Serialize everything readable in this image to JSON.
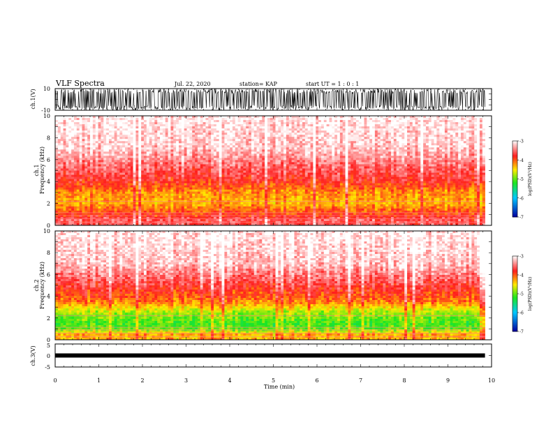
{
  "header": {
    "title": "VLF Spectra",
    "date": "Jul. 22, 2020",
    "station": "station= KAP",
    "start_ut": "start UT =  1 : 0 : 1"
  },
  "colors": {
    "low": "#0000c0",
    "mid_low": "#00e0ff",
    "mid": "#20e020",
    "mid_high": "#ffee00",
    "high": "#ff2020",
    "top": "#ffffff"
  },
  "chart_data": [
    {
      "type": "line",
      "name": "ch1-waveform",
      "ylabel": "ch.1(V)",
      "ylim": [
        -10,
        10
      ],
      "yticks": [
        "10",
        "-10"
      ],
      "xlim": [
        0,
        10
      ],
      "note_data_extent_min": 9.85,
      "description_style": "dense noisy waveform near full scale"
    },
    {
      "type": "heatmap",
      "name": "ch1-spectrogram",
      "ylabel": "ch.1\nFrequency (kHz)",
      "ylim": [
        0,
        10
      ],
      "yticks": [
        "0",
        "2",
        "4",
        "6",
        "8",
        "10"
      ],
      "xlim": [
        0,
        10
      ],
      "time_extent_min": 9.85,
      "colorbar": {
        "label": "log(PSD)(V²/Hz)",
        "range": [
          -7,
          -3
        ],
        "ticks": [
          "-3",
          "-4",
          "-5",
          "-6",
          "-7"
        ]
      },
      "intensity_profile_khz": [
        {
          "f": 0.5,
          "level": -3.6
        },
        {
          "f": 1.0,
          "level": -3.9
        },
        {
          "f": 2.0,
          "level": -4.3
        },
        {
          "f": 3.0,
          "level": -4.2
        },
        {
          "f": 4.0,
          "level": -3.8
        },
        {
          "f": 5.0,
          "level": -3.6
        },
        {
          "f": 7.0,
          "level": -3.2
        },
        {
          "f": 10.0,
          "level": -3.05
        }
      ]
    },
    {
      "type": "heatmap",
      "name": "ch2-spectrogram",
      "ylabel": "ch.2\nFrequency (kHz)",
      "ylim": [
        0,
        10
      ],
      "yticks": [
        "0",
        "2",
        "4",
        "6",
        "8",
        "10"
      ],
      "xlim": [
        0,
        10
      ],
      "time_extent_min": 9.85,
      "colorbar": {
        "label": "log(PSD)(V²/Hz)",
        "range": [
          -7,
          -3
        ],
        "ticks": [
          "-3",
          "-4",
          "-5",
          "-6",
          "-7"
        ]
      },
      "intensity_profile_khz": [
        {
          "f": 0.5,
          "level": -4.3
        },
        {
          "f": 1.0,
          "level": -5.0
        },
        {
          "f": 1.5,
          "level": -5.1
        },
        {
          "f": 2.5,
          "level": -4.8
        },
        {
          "f": 3.5,
          "level": -4.1
        },
        {
          "f": 5.0,
          "level": -3.7
        },
        {
          "f": 7.0,
          "level": -3.2
        },
        {
          "f": 10.0,
          "level": -3.05
        }
      ]
    },
    {
      "type": "line",
      "name": "ch3-waveform",
      "ylabel": "ch.3(V)",
      "ylim": [
        -5,
        5
      ],
      "yticks": [
        "5",
        "0",
        "-5"
      ],
      "xlim": [
        0,
        10
      ],
      "xticks": [
        "0",
        "1",
        "2",
        "3",
        "4",
        "5",
        "6",
        "7",
        "8",
        "9",
        "10"
      ],
      "xlabel": "Time (min)",
      "constant_level": 0,
      "time_extent_min": 9.85
    }
  ]
}
